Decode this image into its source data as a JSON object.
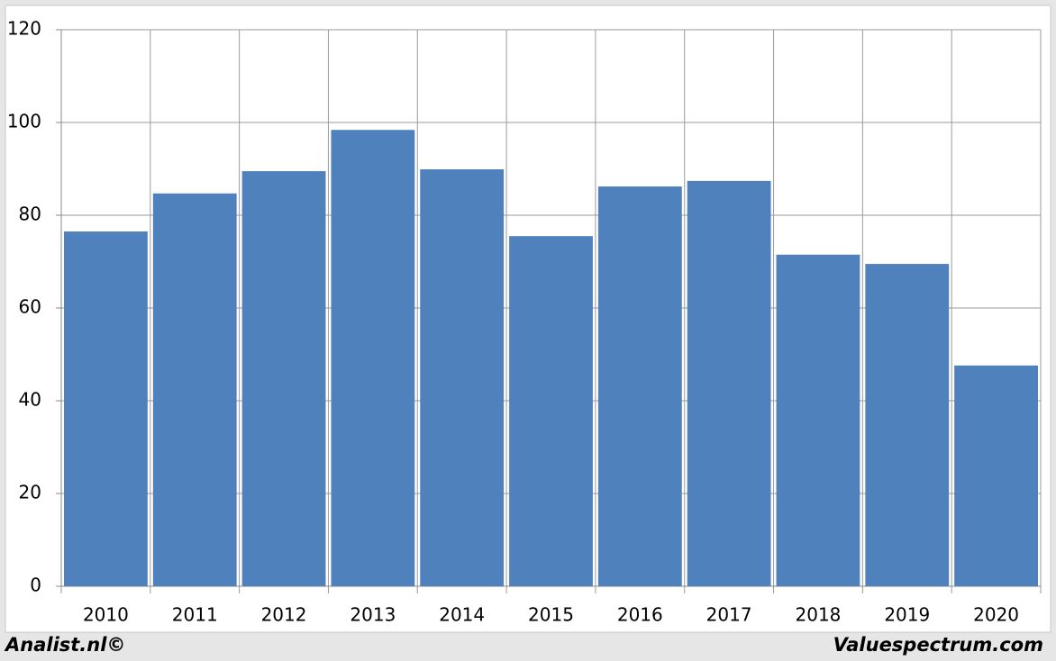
{
  "chart_data": {
    "type": "bar",
    "categories": [
      "2010",
      "2011",
      "2012",
      "2013",
      "2014",
      "2015",
      "2016",
      "2017",
      "2018",
      "2019",
      "2020"
    ],
    "values": [
      76.5,
      84.7,
      89.5,
      98.4,
      89.9,
      75.5,
      86.2,
      87.4,
      71.5,
      69.5,
      47.6
    ],
    "color": "#4f81bd",
    "ylim": [
      0,
      120
    ],
    "yticks": [
      0,
      20,
      40,
      60,
      80,
      100,
      120
    ],
    "grid": true
  },
  "footer": {
    "left": "Analist.nl©",
    "right": "Valuespectrum.com"
  }
}
